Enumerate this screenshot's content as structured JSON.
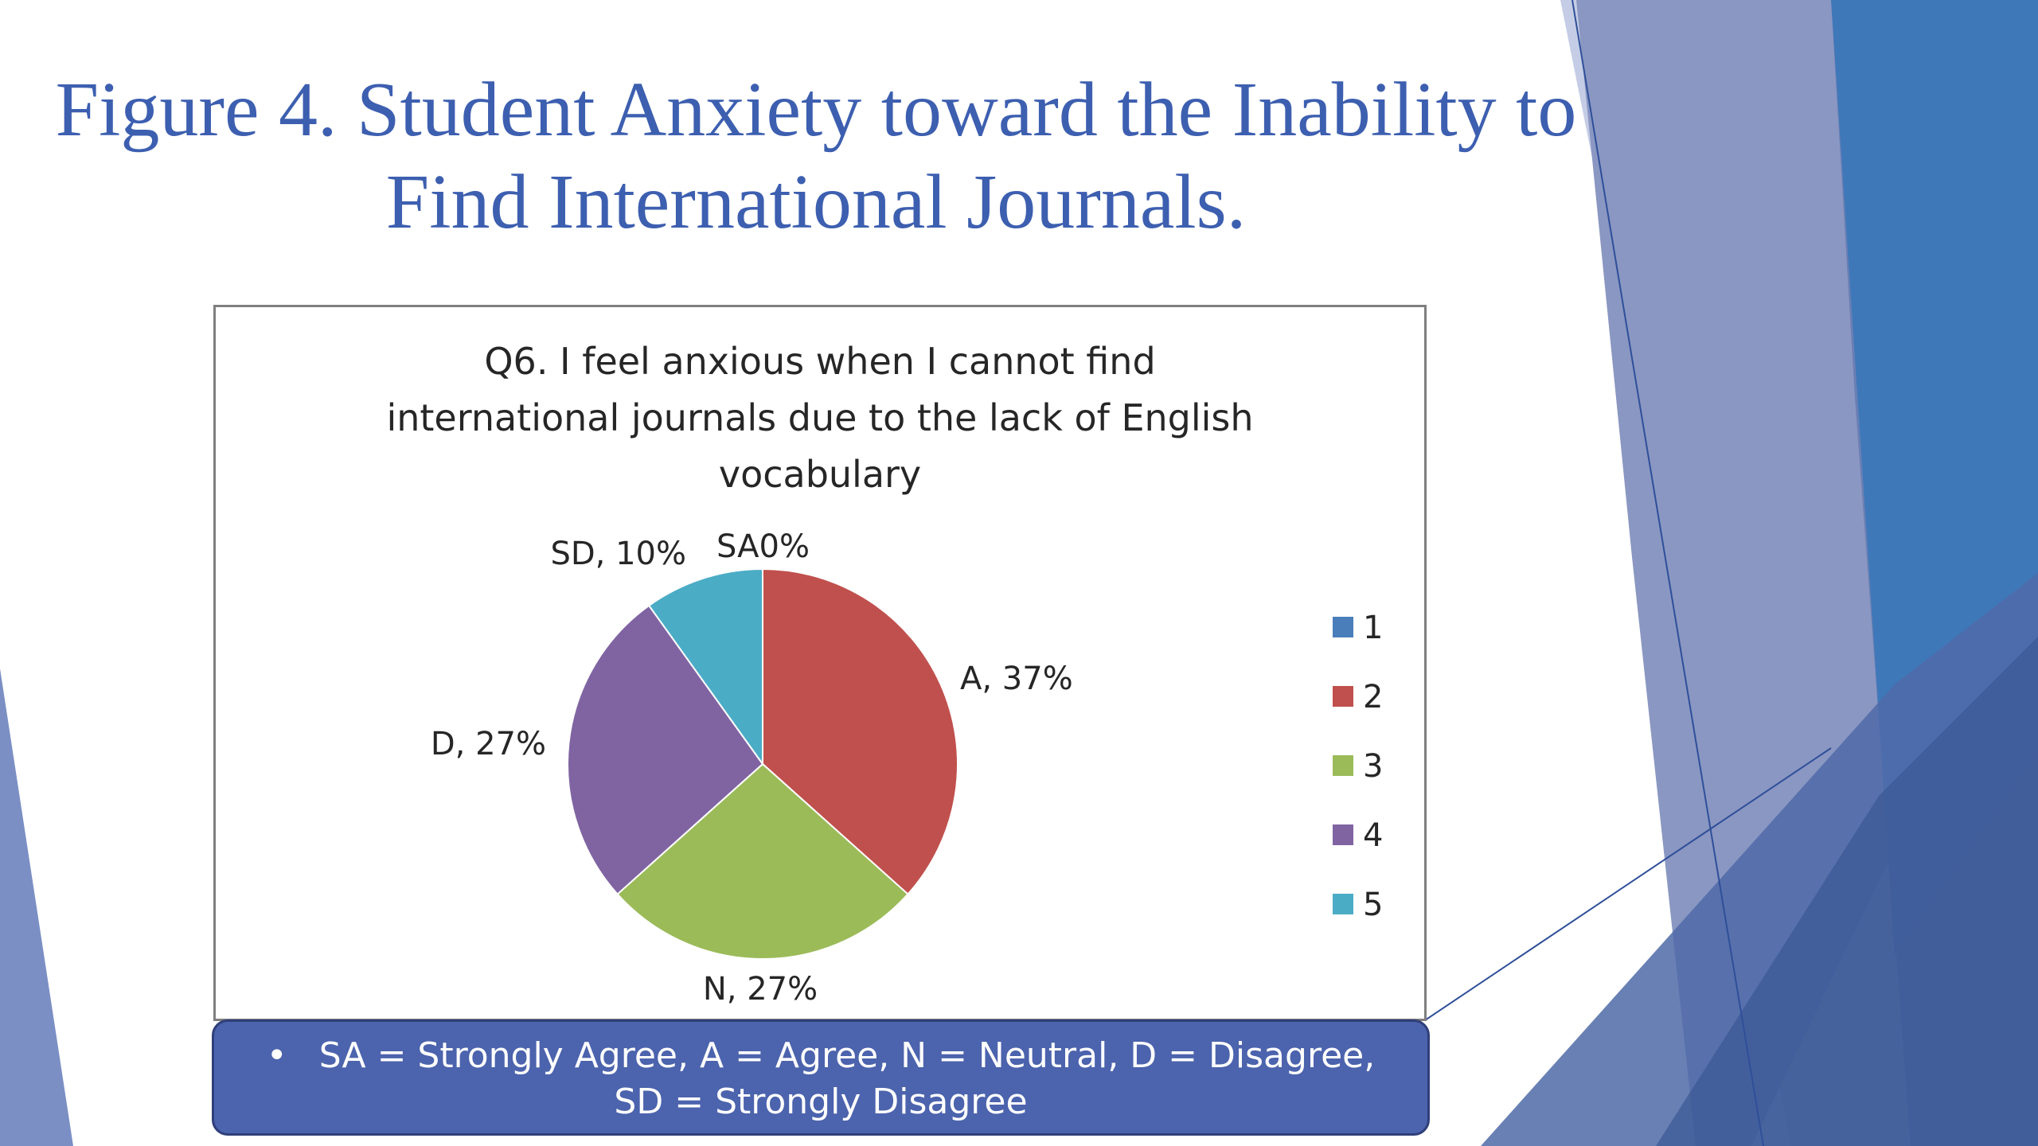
{
  "slide": {
    "title_line1": "Figure 4. Student Anxiety toward the Inability  to",
    "title_line2": "Find International Journals.",
    "note_bullet": "•",
    "note_line1": "SA = Strongly Agree, A = Agree, N = Neutral, D = Disagree,",
    "note_line2": "SD = Strongly Disagree"
  },
  "colors": {
    "title": "#3d5fb0",
    "note_bg": "#4c63ad",
    "deco_light": "#c5cde6",
    "deco_mid": "#8a97c2",
    "deco_dark": "#4f6aa8",
    "deco_blue": "#3f78b9"
  },
  "chart_data": {
    "type": "pie",
    "title_lines": [
      "Q6. I feel anxious when I cannot find",
      "international journals due to the lack of English",
      "vocabulary"
    ],
    "slices": [
      {
        "legend": "1",
        "label": "SA0%",
        "value": 0,
        "color": "#4a7ebb"
      },
      {
        "legend": "2",
        "label": "A, 37%",
        "value": 37,
        "color": "#c0504d"
      },
      {
        "legend": "3",
        "label": "N, 27%",
        "value": 27,
        "color": "#9bbb59"
      },
      {
        "legend": "4",
        "label": "D, 27%",
        "value": 27,
        "color": "#8064a2"
      },
      {
        "legend": "5",
        "label": "SD, 10%",
        "value": 10,
        "color": "#4bacc6"
      }
    ],
    "legend_position": "right"
  }
}
